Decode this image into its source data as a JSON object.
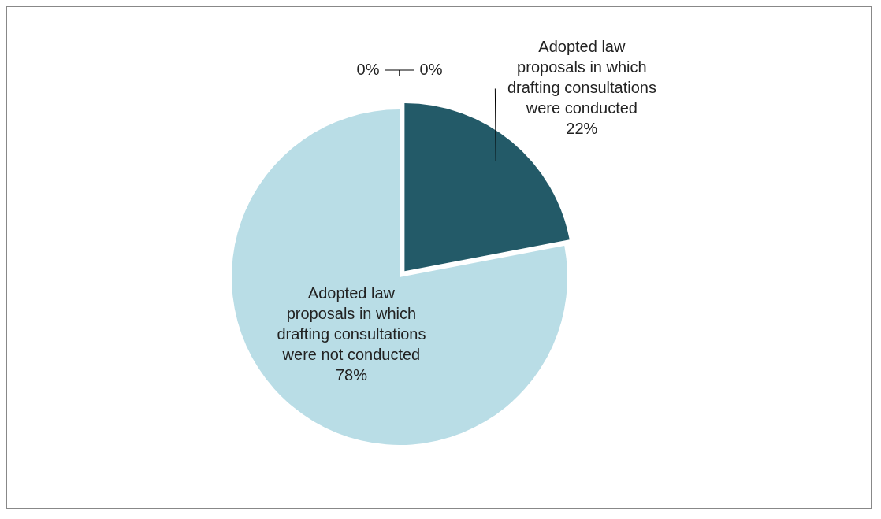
{
  "chart_data": {
    "type": "pie",
    "categories": [
      "Adopted law proposals in which drafting consultations were conducted",
      "Adopted law proposals in which drafting consultations were not conducted",
      null,
      null
    ],
    "values": [
      22,
      78,
      0,
      0
    ],
    "colors": [
      "#235a68",
      "#b9dde6",
      "#4f81bd",
      "#c0504d"
    ],
    "value_labels": [
      "22%",
      "78%",
      "0%",
      "0%"
    ],
    "legend": false
  }
}
